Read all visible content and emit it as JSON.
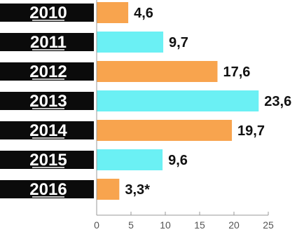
{
  "chart_data": {
    "type": "bar",
    "orientation": "horizontal",
    "categories": [
      "2010",
      "2011",
      "2012",
      "2013",
      "2014",
      "2015",
      "2016"
    ],
    "values": [
      4.6,
      9.7,
      17.6,
      23.6,
      19.7,
      9.6,
      3.3
    ],
    "value_labels": [
      "4,6",
      "9,7",
      "17,6",
      "23,6",
      "19,7",
      "9,6",
      "3,3*"
    ],
    "bar_colors": [
      "#f8a44e",
      "#6bf0f4",
      "#f8a44e",
      "#6bf0f4",
      "#f8a44e",
      "#6bf0f4",
      "#f8a44e"
    ],
    "label_background": "#0b0b0b",
    "xlim": [
      0,
      25
    ],
    "x_ticks": [
      0,
      5,
      10,
      15,
      20,
      25
    ],
    "grid": false,
    "title": "",
    "xlabel": "",
    "ylabel": ""
  }
}
